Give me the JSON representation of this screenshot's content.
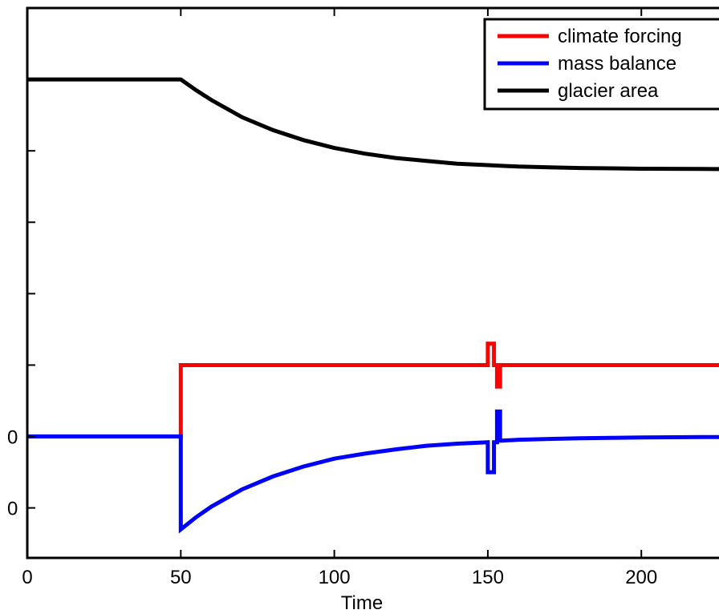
{
  "chart_data": {
    "type": "line",
    "xlabel": "Time",
    "xlim": [
      0,
      230
    ],
    "xticks": [
      0,
      50,
      100,
      150,
      200
    ],
    "y_left_zero_labels": [
      "0",
      "0"
    ],
    "grid": false,
    "legend_position": "top-right",
    "series": [
      {
        "name": "climate forcing",
        "color": "#ff0000",
        "x": [
          0,
          50,
          50,
          150,
          150,
          152,
          152,
          153,
          153,
          154,
          154,
          230
        ],
        "y": [
          0,
          0,
          1,
          1,
          1.3,
          1.3,
          1,
          1,
          0.7,
          0.7,
          1,
          1
        ]
      },
      {
        "name": "mass balance",
        "color": "#0000ff",
        "x": [
          0,
          50,
          50,
          55,
          60,
          70,
          80,
          90,
          100,
          110,
          120,
          130,
          140,
          150,
          150,
          152,
          152,
          153,
          153,
          154,
          154,
          160,
          170,
          180,
          190,
          200,
          210,
          220,
          230
        ],
        "y": [
          0,
          0,
          -1.3,
          -1.13,
          -0.98,
          -0.74,
          -0.56,
          -0.42,
          -0.31,
          -0.24,
          -0.18,
          -0.13,
          -0.1,
          -0.08,
          -0.5,
          -0.5,
          -0.08,
          -0.08,
          0.35,
          0.35,
          -0.06,
          -0.045,
          -0.034,
          -0.025,
          -0.019,
          -0.014,
          -0.011,
          -0.008,
          -0.006
        ]
      },
      {
        "name": "glacier area",
        "color": "#000000",
        "x": [
          0,
          50,
          55,
          60,
          70,
          80,
          90,
          100,
          110,
          120,
          130,
          140,
          150,
          160,
          170,
          180,
          190,
          200,
          210,
          220,
          230
        ],
        "y": [
          5,
          5,
          4.85,
          4.71,
          4.47,
          4.29,
          4.15,
          4.04,
          3.96,
          3.9,
          3.86,
          3.82,
          3.8,
          3.78,
          3.77,
          3.76,
          3.755,
          3.75,
          3.748,
          3.746,
          3.745
        ]
      }
    ],
    "ylim": [
      -1.7,
      6
    ]
  }
}
